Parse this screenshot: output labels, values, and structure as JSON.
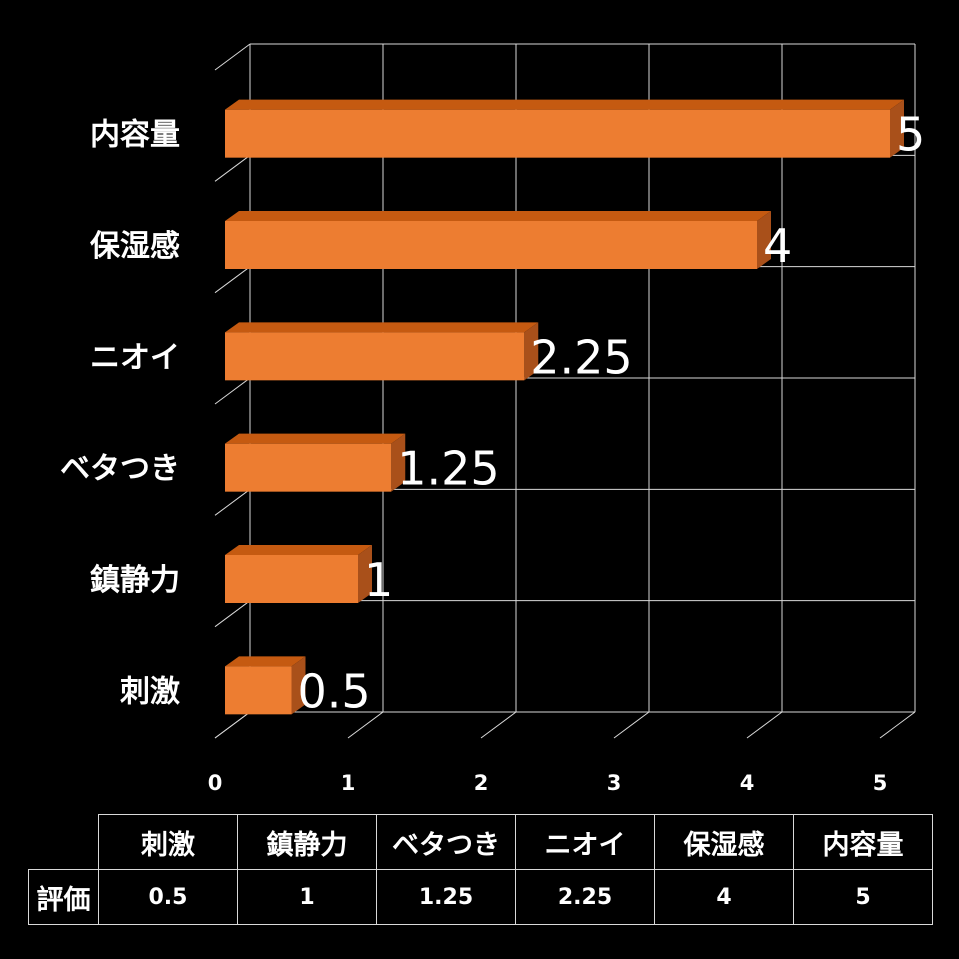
{
  "chart_data": {
    "type": "bar",
    "orientation": "horizontal",
    "categories": [
      "内容量",
      "保湿感",
      "ニオイ",
      "ベタつき",
      "鎮静力",
      "刺激"
    ],
    "values": [
      5,
      4,
      2.25,
      1.25,
      1,
      0.5
    ],
    "data_labels": [
      "5",
      "4",
      "2.25",
      "1.25",
      "1",
      "0.5"
    ],
    "x_ticks": [
      "0",
      "1",
      "2",
      "3",
      "4",
      "5"
    ],
    "xlim": [
      0,
      5
    ],
    "grid": true,
    "bar_color": "#ED7D31",
    "bar_top_color": "#C55A11",
    "bar_side_color": "#A9501A",
    "grid_color": "#d9d9d9",
    "title": "",
    "xlabel": "",
    "ylabel": ""
  },
  "table": {
    "row_label": "評価",
    "headers": [
      "刺激",
      "鎮静力",
      "ベタつき",
      "ニオイ",
      "保湿感",
      "内容量"
    ],
    "values": [
      "0.5",
      "1",
      "1.25",
      "2.25",
      "4",
      "5"
    ]
  }
}
